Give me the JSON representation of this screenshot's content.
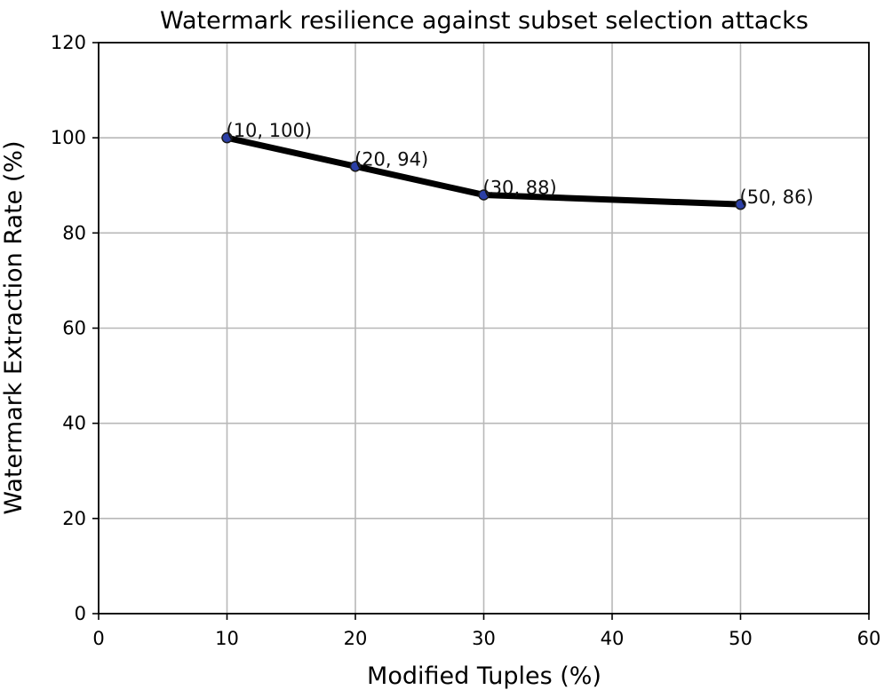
{
  "chart_data": {
    "type": "line",
    "title": "Watermark resilience against subset selection attacks",
    "xlabel": "Modified Tuples (%)",
    "ylabel": "Watermark Extraction Rate (%)",
    "xlim": [
      0,
      60
    ],
    "ylim": [
      0,
      120
    ],
    "xticks": [
      0,
      10,
      20,
      30,
      40,
      50,
      60
    ],
    "yticks": [
      0,
      20,
      40,
      60,
      80,
      100,
      120
    ],
    "grid": true,
    "series": [
      {
        "x": [
          10,
          20,
          30,
          50
        ],
        "y": [
          100,
          94,
          88,
          86
        ],
        "color": "#000000",
        "marker_color": "#2b3fa6"
      }
    ],
    "annotations": [
      "(10, 100)",
      "(20, 94)",
      "(30, 88)",
      "(50, 86)"
    ]
  }
}
